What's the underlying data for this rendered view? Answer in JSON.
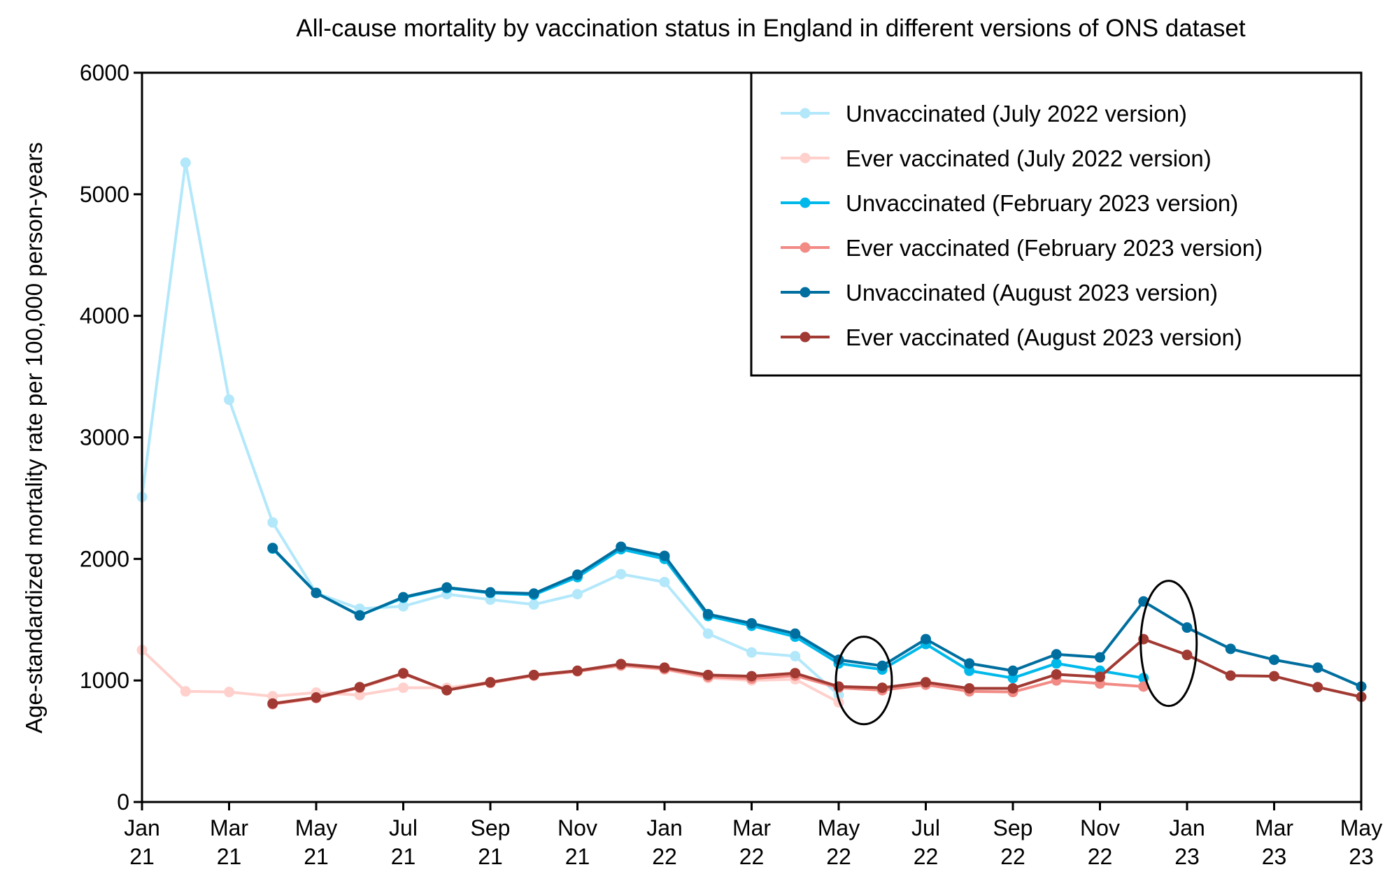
{
  "chart_data": {
    "type": "line",
    "title": "All-cause mortality by vaccination status in England in different versions of ONS dataset",
    "xlabel": "",
    "ylabel": "Age-standardized mortality rate per 100,000 person-years",
    "ylim": [
      0,
      6000
    ],
    "yticks": [
      0,
      1000,
      2000,
      3000,
      4000,
      5000,
      6000
    ],
    "x": [
      "Jan 21",
      "Feb 21",
      "Mar 21",
      "Apr 21",
      "May 21",
      "Jun 21",
      "Jul 21",
      "Aug 21",
      "Sep 21",
      "Oct 21",
      "Nov 21",
      "Dec 21",
      "Jan 22",
      "Feb 22",
      "Mar 22",
      "Apr 22",
      "May 22",
      "Jun 22",
      "Jul 22",
      "Aug 22",
      "Sep 22",
      "Oct 22",
      "Nov 22",
      "Dec 22",
      "Jan 23",
      "Feb 23",
      "Mar 23",
      "Apr 23",
      "May 23"
    ],
    "xticks": [
      {
        "index": 0,
        "month": "Jan",
        "year": "21"
      },
      {
        "index": 2,
        "month": "Mar",
        "year": "21"
      },
      {
        "index": 4,
        "month": "May",
        "year": "21"
      },
      {
        "index": 6,
        "month": "Jul",
        "year": "21"
      },
      {
        "index": 8,
        "month": "Sep",
        "year": "21"
      },
      {
        "index": 10,
        "month": "Nov",
        "year": "21"
      },
      {
        "index": 12,
        "month": "Jan",
        "year": "22"
      },
      {
        "index": 14,
        "month": "Mar",
        "year": "22"
      },
      {
        "index": 16,
        "month": "May",
        "year": "22"
      },
      {
        "index": 18,
        "month": "Jul",
        "year": "22"
      },
      {
        "index": 20,
        "month": "Sep",
        "year": "22"
      },
      {
        "index": 22,
        "month": "Nov",
        "year": "22"
      },
      {
        "index": 24,
        "month": "Jan",
        "year": "23"
      },
      {
        "index": 26,
        "month": "Mar",
        "year": "23"
      },
      {
        "index": 28,
        "month": "May",
        "year": "23"
      }
    ],
    "grid": false,
    "legend_position": "top-right",
    "series": [
      {
        "name": "Unvaccinated (July 2022 version)",
        "color": "#b3e8fb",
        "start_index": 0,
        "values": [
          2510,
          5260,
          3310,
          2300,
          1720,
          1590,
          1610,
          1710,
          1665,
          1625,
          1710,
          1875,
          1810,
          1385,
          1230,
          1200,
          880
        ]
      },
      {
        "name": "Ever vaccinated (July 2022 version)",
        "color": "#ffd0cc",
        "start_index": 0,
        "values": [
          1250,
          910,
          905,
          870,
          900,
          880,
          940,
          940,
          985,
          1040,
          1075,
          1120,
          1090,
          1020,
          1000,
          1010,
          820
        ]
      },
      {
        "name": "Unvaccinated (February 2023 version)",
        "color": "#00b9ea",
        "start_index": 3,
        "values": [
          2085,
          1720,
          1535,
          1680,
          1760,
          1720,
          1705,
          1850,
          2080,
          2000,
          1530,
          1450,
          1360,
          1140,
          1090,
          1300,
          1080,
          1020,
          1140,
          1080,
          1020
        ]
      },
      {
        "name": "Ever vaccinated (February 2023 version)",
        "color": "#f28b85",
        "start_index": 3,
        "values": [
          805,
          855,
          940,
          1055,
          920,
          980,
          1040,
          1075,
          1125,
          1095,
          1030,
          1015,
          1040,
          940,
          920,
          965,
          910,
          905,
          1000,
          975,
          950
        ]
      },
      {
        "name": "Unvaccinated (August 2023 version)",
        "color": "#006e9e",
        "start_index": 3,
        "values": [
          2090,
          1720,
          1535,
          1685,
          1765,
          1725,
          1715,
          1870,
          2100,
          2025,
          1545,
          1470,
          1385,
          1170,
          1120,
          1340,
          1140,
          1080,
          1215,
          1190,
          1650,
          1435,
          1260,
          1170,
          1105,
          950
        ]
      },
      {
        "name": "Ever vaccinated (August 2023 version)",
        "color": "#a13a33",
        "start_index": 3,
        "values": [
          810,
          860,
          945,
          1060,
          920,
          985,
          1045,
          1080,
          1135,
          1105,
          1045,
          1035,
          1060,
          950,
          940,
          985,
          935,
          935,
          1050,
          1030,
          1340,
          1210,
          1040,
          1035,
          945,
          865
        ]
      }
    ],
    "annotations": [
      {
        "type": "ellipse",
        "center_index": 16,
        "y_range": [
          640,
          1360
        ],
        "note": "circled May 22 points"
      },
      {
        "type": "ellipse",
        "center_index": 23,
        "y_range": [
          790,
          1820
        ],
        "note": "circled Dec 22 points"
      }
    ]
  }
}
